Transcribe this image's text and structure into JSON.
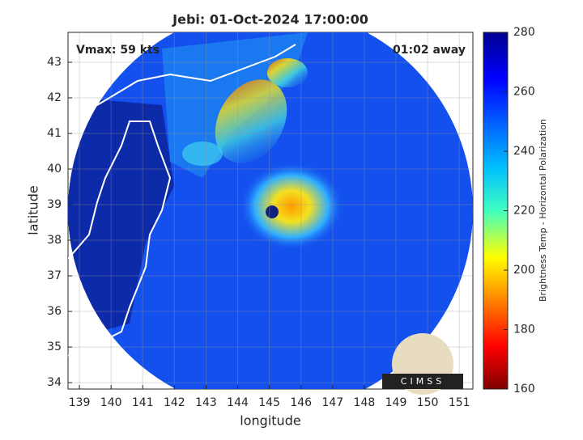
{
  "chart_data": {
    "type": "map",
    "title": "Jebi: 01-Oct-2024 17:00:00",
    "xlabel": "longitude",
    "ylabel": "latitude",
    "xlim": [
      138.64,
      151.43
    ],
    "ylim": [
      33.82,
      43.84
    ],
    "xticks": [
      139,
      140,
      141,
      142,
      143,
      144,
      145,
      146,
      147,
      148,
      149,
      150,
      151
    ],
    "yticks": [
      34,
      35,
      36,
      37,
      38,
      39,
      40,
      41,
      42,
      43
    ],
    "grid": true,
    "annotations": [
      "Vmax: 59 kts",
      "01:02 away"
    ],
    "logo": "CIMSS",
    "colorbar": {
      "label": "Brightness Temp - Horizontal Polarization",
      "lim": [
        160,
        280
      ],
      "ticks": [
        160,
        180,
        200,
        220,
        240,
        260,
        280
      ]
    }
  }
}
